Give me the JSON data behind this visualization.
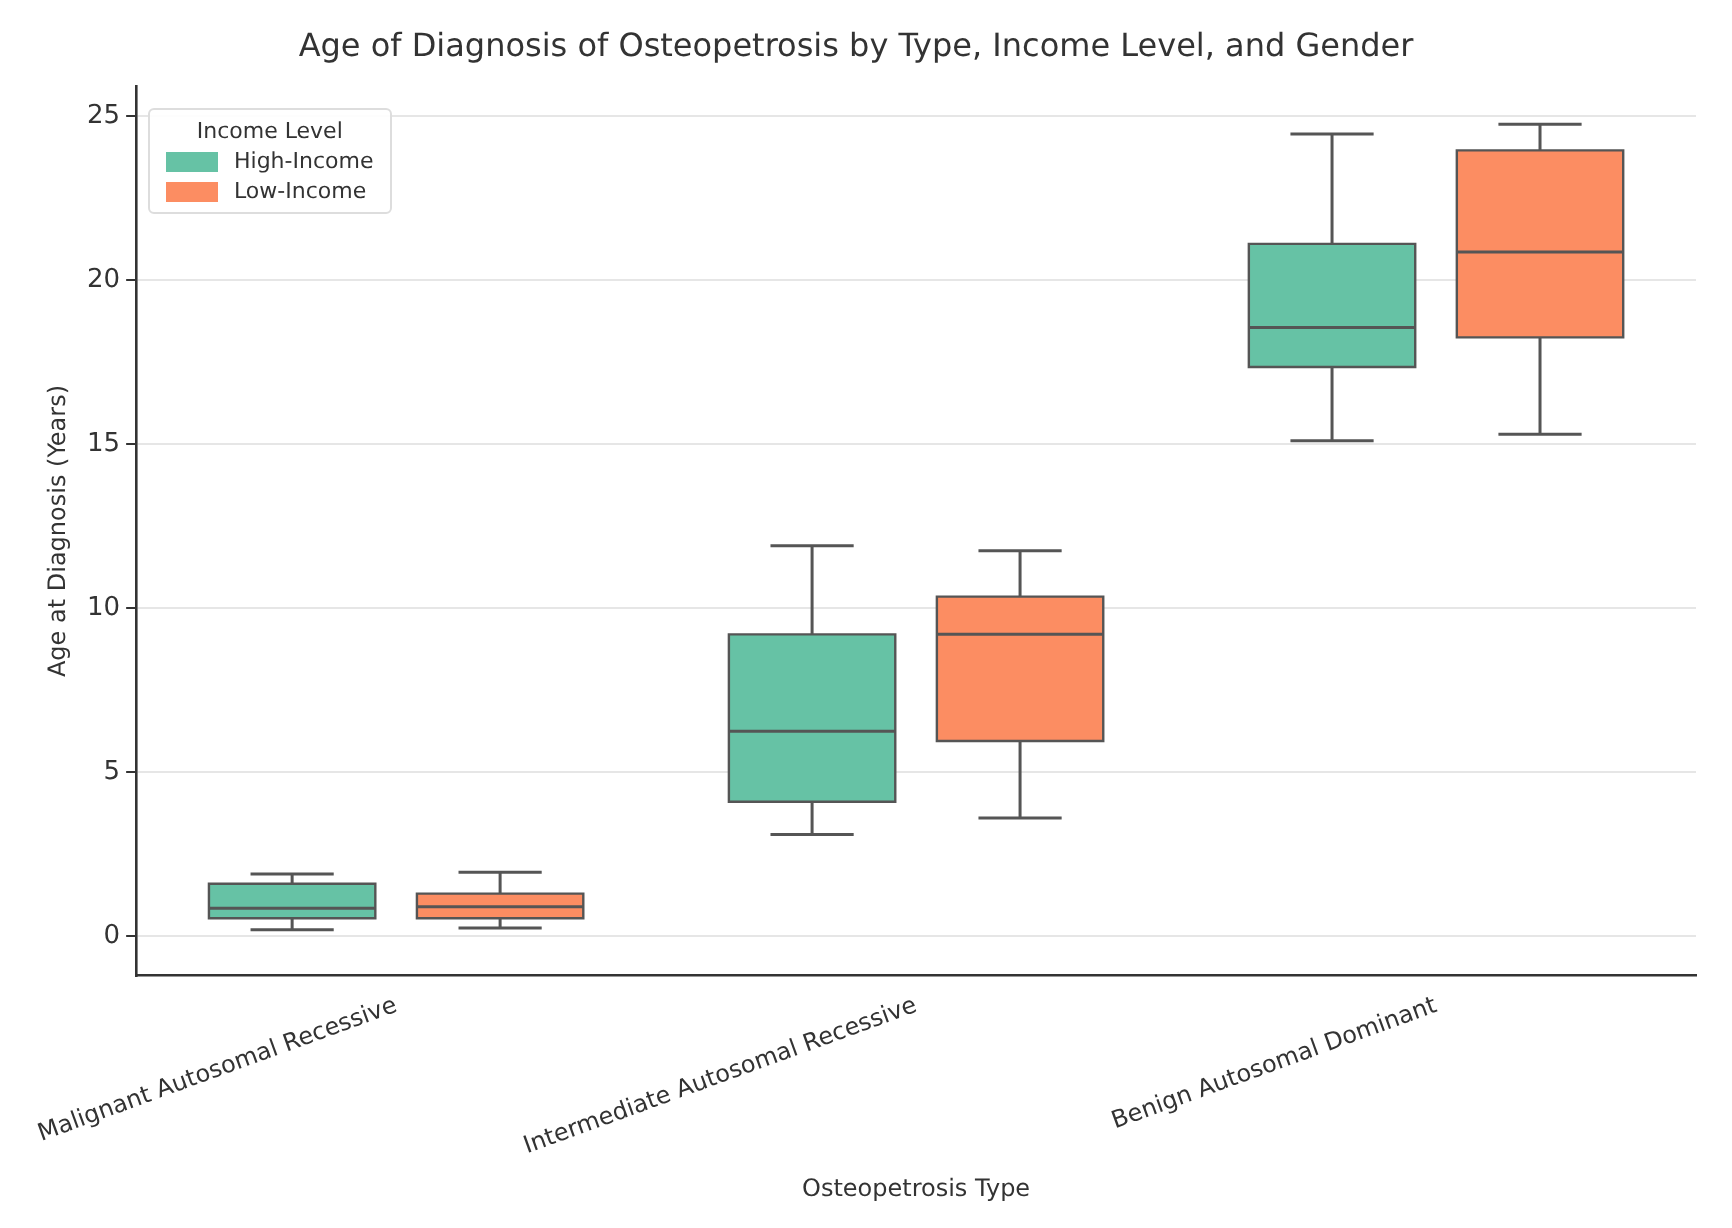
{
  "chart_data": {
    "type": "box",
    "title": "Age of Diagnosis of Osteopetrosis by Type, Income Level, and Gender",
    "xlabel": "Osteopetrosis Type",
    "ylabel": "Age at Diagnosis (Years)",
    "legend_title": "Income Level",
    "categories": [
      "Malignant Autosomal Recessive",
      "Intermediate Autosomal Recessive",
      "Benign Autosomal Dominant"
    ],
    "series": [
      {
        "name": "High-Income",
        "color": "#66c2a5",
        "boxes": [
          {
            "low": 0.2,
            "q1": 0.55,
            "median": 0.85,
            "q3": 1.6,
            "high": 1.9
          },
          {
            "low": 3.1,
            "q1": 4.1,
            "median": 6.25,
            "q3": 9.2,
            "high": 11.9
          },
          {
            "low": 15.1,
            "q1": 17.35,
            "median": 18.55,
            "q3": 21.1,
            "high": 24.45
          }
        ]
      },
      {
        "name": "Low-Income",
        "color": "#fc8d62",
        "boxes": [
          {
            "low": 0.25,
            "q1": 0.55,
            "median": 0.9,
            "q3": 1.3,
            "high": 1.95
          },
          {
            "low": 3.6,
            "q1": 5.95,
            "median": 9.2,
            "q3": 10.35,
            "high": 11.75
          },
          {
            "low": 15.3,
            "q1": 18.25,
            "median": 20.85,
            "q3": 23.95,
            "high": 24.75
          }
        ]
      }
    ],
    "ylim": [
      -1.2,
      25.9
    ],
    "yticks": [
      0,
      5,
      10,
      15,
      20,
      25
    ],
    "grid": "y",
    "legend": "top left"
  }
}
